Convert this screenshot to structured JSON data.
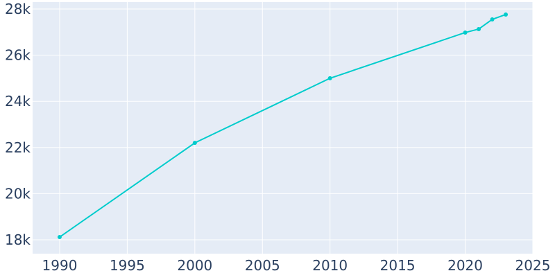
{
  "chart_data": {
    "type": "line",
    "title": "",
    "xlabel": "",
    "ylabel": "",
    "xlim": [
      1988,
      2025
    ],
    "ylim": [
      17400,
      28300
    ],
    "x_ticks": [
      1990,
      1995,
      2000,
      2005,
      2010,
      2015,
      2020,
      2025
    ],
    "x_tick_labels": [
      "1990",
      "1995",
      "2000",
      "2005",
      "2010",
      "2015",
      "2020",
      "2025"
    ],
    "y_ticks": [
      18000,
      20000,
      22000,
      24000,
      26000,
      28000
    ],
    "y_tick_labels": [
      "18k",
      "20k",
      "22k",
      "24k",
      "26k",
      "28k"
    ],
    "grid": true,
    "legend": "none",
    "colors": {
      "plot_background": "#e5ecf6",
      "grid": "#ffffff",
      "line": "#00cccc",
      "tick_text": "#2a3f5f"
    },
    "series": [
      {
        "x": [
          1990,
          2000,
          2010,
          2020,
          2021,
          2022,
          2023
        ],
        "y": [
          18120,
          22200,
          25000,
          26980,
          27130,
          27550,
          27760
        ]
      }
    ]
  }
}
